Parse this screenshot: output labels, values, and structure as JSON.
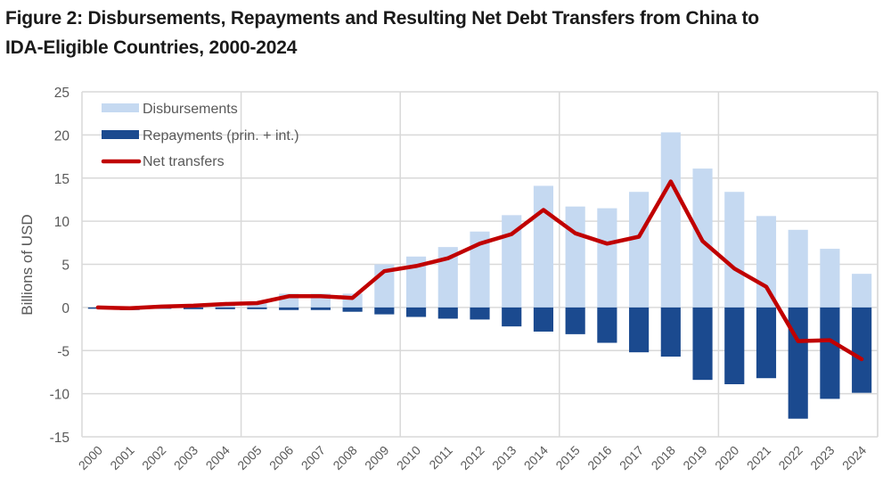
{
  "chart_data": {
    "type": "bar",
    "title": "Figure 2: Disbursements, Repayments and Resulting Net Debt Transfers from China to IDA-Eligible Countries, 2000-2024",
    "title_lines": [
      "Figure 2: Disbursements, Repayments and Resulting Net Debt Transfers from China to",
      "IDA-Eligible Countries, 2000-2024"
    ],
    "xlabel": "",
    "ylabel": "Billions of USD",
    "ylim": [
      -15,
      25
    ],
    "yticks": [
      -15,
      -10,
      -5,
      0,
      5,
      10,
      15,
      20,
      25
    ],
    "grid": true,
    "legend_position": "top-left",
    "categories": [
      "2000",
      "2001",
      "2002",
      "2003",
      "2004",
      "2005",
      "2006",
      "2007",
      "2008",
      "2009",
      "2010",
      "2011",
      "2012",
      "2013",
      "2014",
      "2015",
      "2016",
      "2017",
      "2018",
      "2019",
      "2020",
      "2021",
      "2022",
      "2023",
      "2024"
    ],
    "series": [
      {
        "name": "Disbursements",
        "type": "bar",
        "color": "#c5d9f1",
        "values": [
          0.0,
          0.1,
          0.1,
          0.2,
          0.5,
          0.7,
          1.6,
          1.6,
          1.6,
          5.0,
          5.9,
          7.0,
          8.8,
          10.7,
          14.1,
          11.7,
          11.5,
          13.4,
          20.3,
          16.1,
          13.4,
          10.6,
          9.0,
          6.8,
          3.9
        ]
      },
      {
        "name": "Repayments (prin. + int.)",
        "type": "bar",
        "color": "#1b4a8f",
        "values": [
          -0.1,
          -0.3,
          -0.1,
          -0.2,
          -0.2,
          -0.2,
          -0.3,
          -0.3,
          -0.5,
          -0.8,
          -1.1,
          -1.3,
          -1.4,
          -2.2,
          -2.8,
          -3.1,
          -4.1,
          -5.2,
          -5.7,
          -8.4,
          -8.9,
          -8.2,
          -12.9,
          -10.6,
          -9.9
        ]
      },
      {
        "name": "Net transfers",
        "type": "line",
        "color": "#c00000",
        "values": [
          0.0,
          -0.1,
          0.1,
          0.2,
          0.4,
          0.5,
          1.3,
          1.3,
          1.1,
          4.2,
          4.8,
          5.7,
          7.4,
          8.5,
          11.3,
          8.6,
          7.4,
          8.2,
          14.6,
          7.7,
          4.5,
          2.4,
          -3.9,
          -3.8,
          -6.0
        ]
      }
    ]
  }
}
